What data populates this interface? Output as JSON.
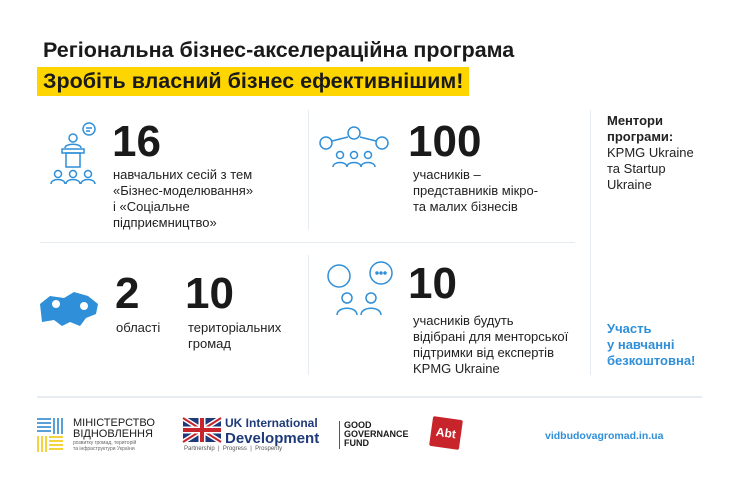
{
  "header": {
    "title": "Регіональна бізнес-акселераційна програма",
    "subtitle": "Зробіть власний бізнес ефективнішим!"
  },
  "stats": [
    {
      "icon": "presenter-audience-icon",
      "value": "16",
      "lines": [
        "навчальних сесій з тем",
        "«Бізнес-моделювання»",
        "і «Соціальне",
        "підприємництво»"
      ]
    },
    {
      "icon": "network-people-icon",
      "value": "100",
      "lines": [
        "учасників –",
        "представників мікро-",
        "та малих бізнесів"
      ]
    },
    {
      "icon": "ukraine-map-pins-icon",
      "value": "2",
      "lines": [
        "області"
      ]
    },
    {
      "value": "10",
      "lines": [
        "територіальних",
        "громад"
      ]
    },
    {
      "icon": "chat-people-icon",
      "value": "10",
      "lines": [
        "учасників будуть",
        "відібрані для менторської",
        "підтримки від експертів",
        "KPMG Ukraine"
      ]
    }
  ],
  "mentors": {
    "title_lines": [
      "Ментори",
      "програми:"
    ],
    "lines": [
      "KPMG Ukraine",
      "та Startup",
      "Ukraine"
    ]
  },
  "free": {
    "lines": [
      "Участь",
      "у навчанні",
      "безкоштовна!"
    ]
  },
  "footer": {
    "ministry": {
      "line1": "МІНІСТЕРСТВО",
      "line2": "ВІДНОВЛЕННЯ",
      "sub1": "розвитку громад, територій",
      "sub2": "та інфраструктури України"
    },
    "ukid": {
      "line1": "UK International",
      "line2": "Development",
      "tagline": "Partnership  |  Progress  |  Prosperity"
    },
    "ggf": {
      "line1": "GOOD",
      "line2": "GOVERNANCE",
      "line3": "FUND"
    },
    "abt": "Abt",
    "website": "vidbudovagromad.in.ua"
  },
  "colors": {
    "accent": "#2f8fd8",
    "highlight": "#ffd500",
    "abt": "#c8242b"
  }
}
